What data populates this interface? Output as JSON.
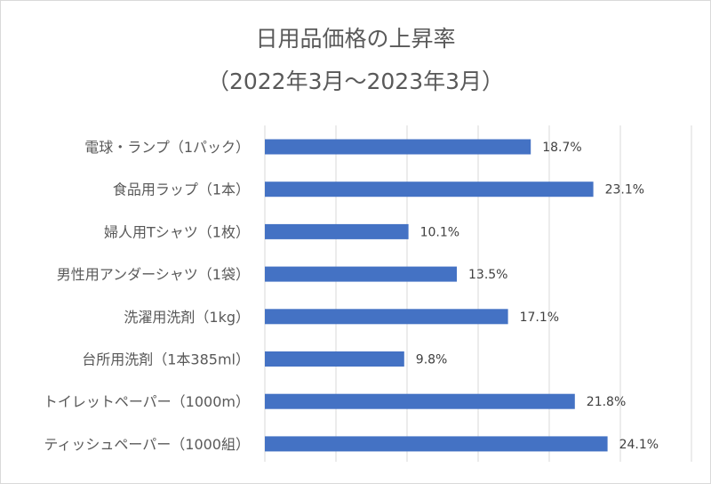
{
  "chart_data": {
    "type": "bar",
    "orientation": "horizontal",
    "title": "日用品価格の上昇率",
    "subtitle": "（2022年3月～2023年3月）",
    "categories": [
      "電球・ランプ（1パック）",
      "食品用ラップ（1本）",
      "婦人用Tシャツ（1枚）",
      "男性用アンダーシャツ（1袋）",
      "洗濯用洗剤（1kg）",
      "台所用洗剤（1本385ml）",
      "トイレットペーパー（1000m）",
      "ティッシュペーパー（1000組）"
    ],
    "values": [
      18.7,
      23.1,
      10.1,
      13.5,
      17.1,
      9.8,
      21.8,
      24.1
    ],
    "data_labels": [
      "18.7%",
      "23.1%",
      "10.1%",
      "13.5%",
      "17.1%",
      "9.8%",
      "21.8%",
      "24.1%"
    ],
    "xlim": [
      0,
      30
    ],
    "grid": true,
    "bar_color": "#4472c4",
    "grid_color": "#d9d9d9"
  }
}
